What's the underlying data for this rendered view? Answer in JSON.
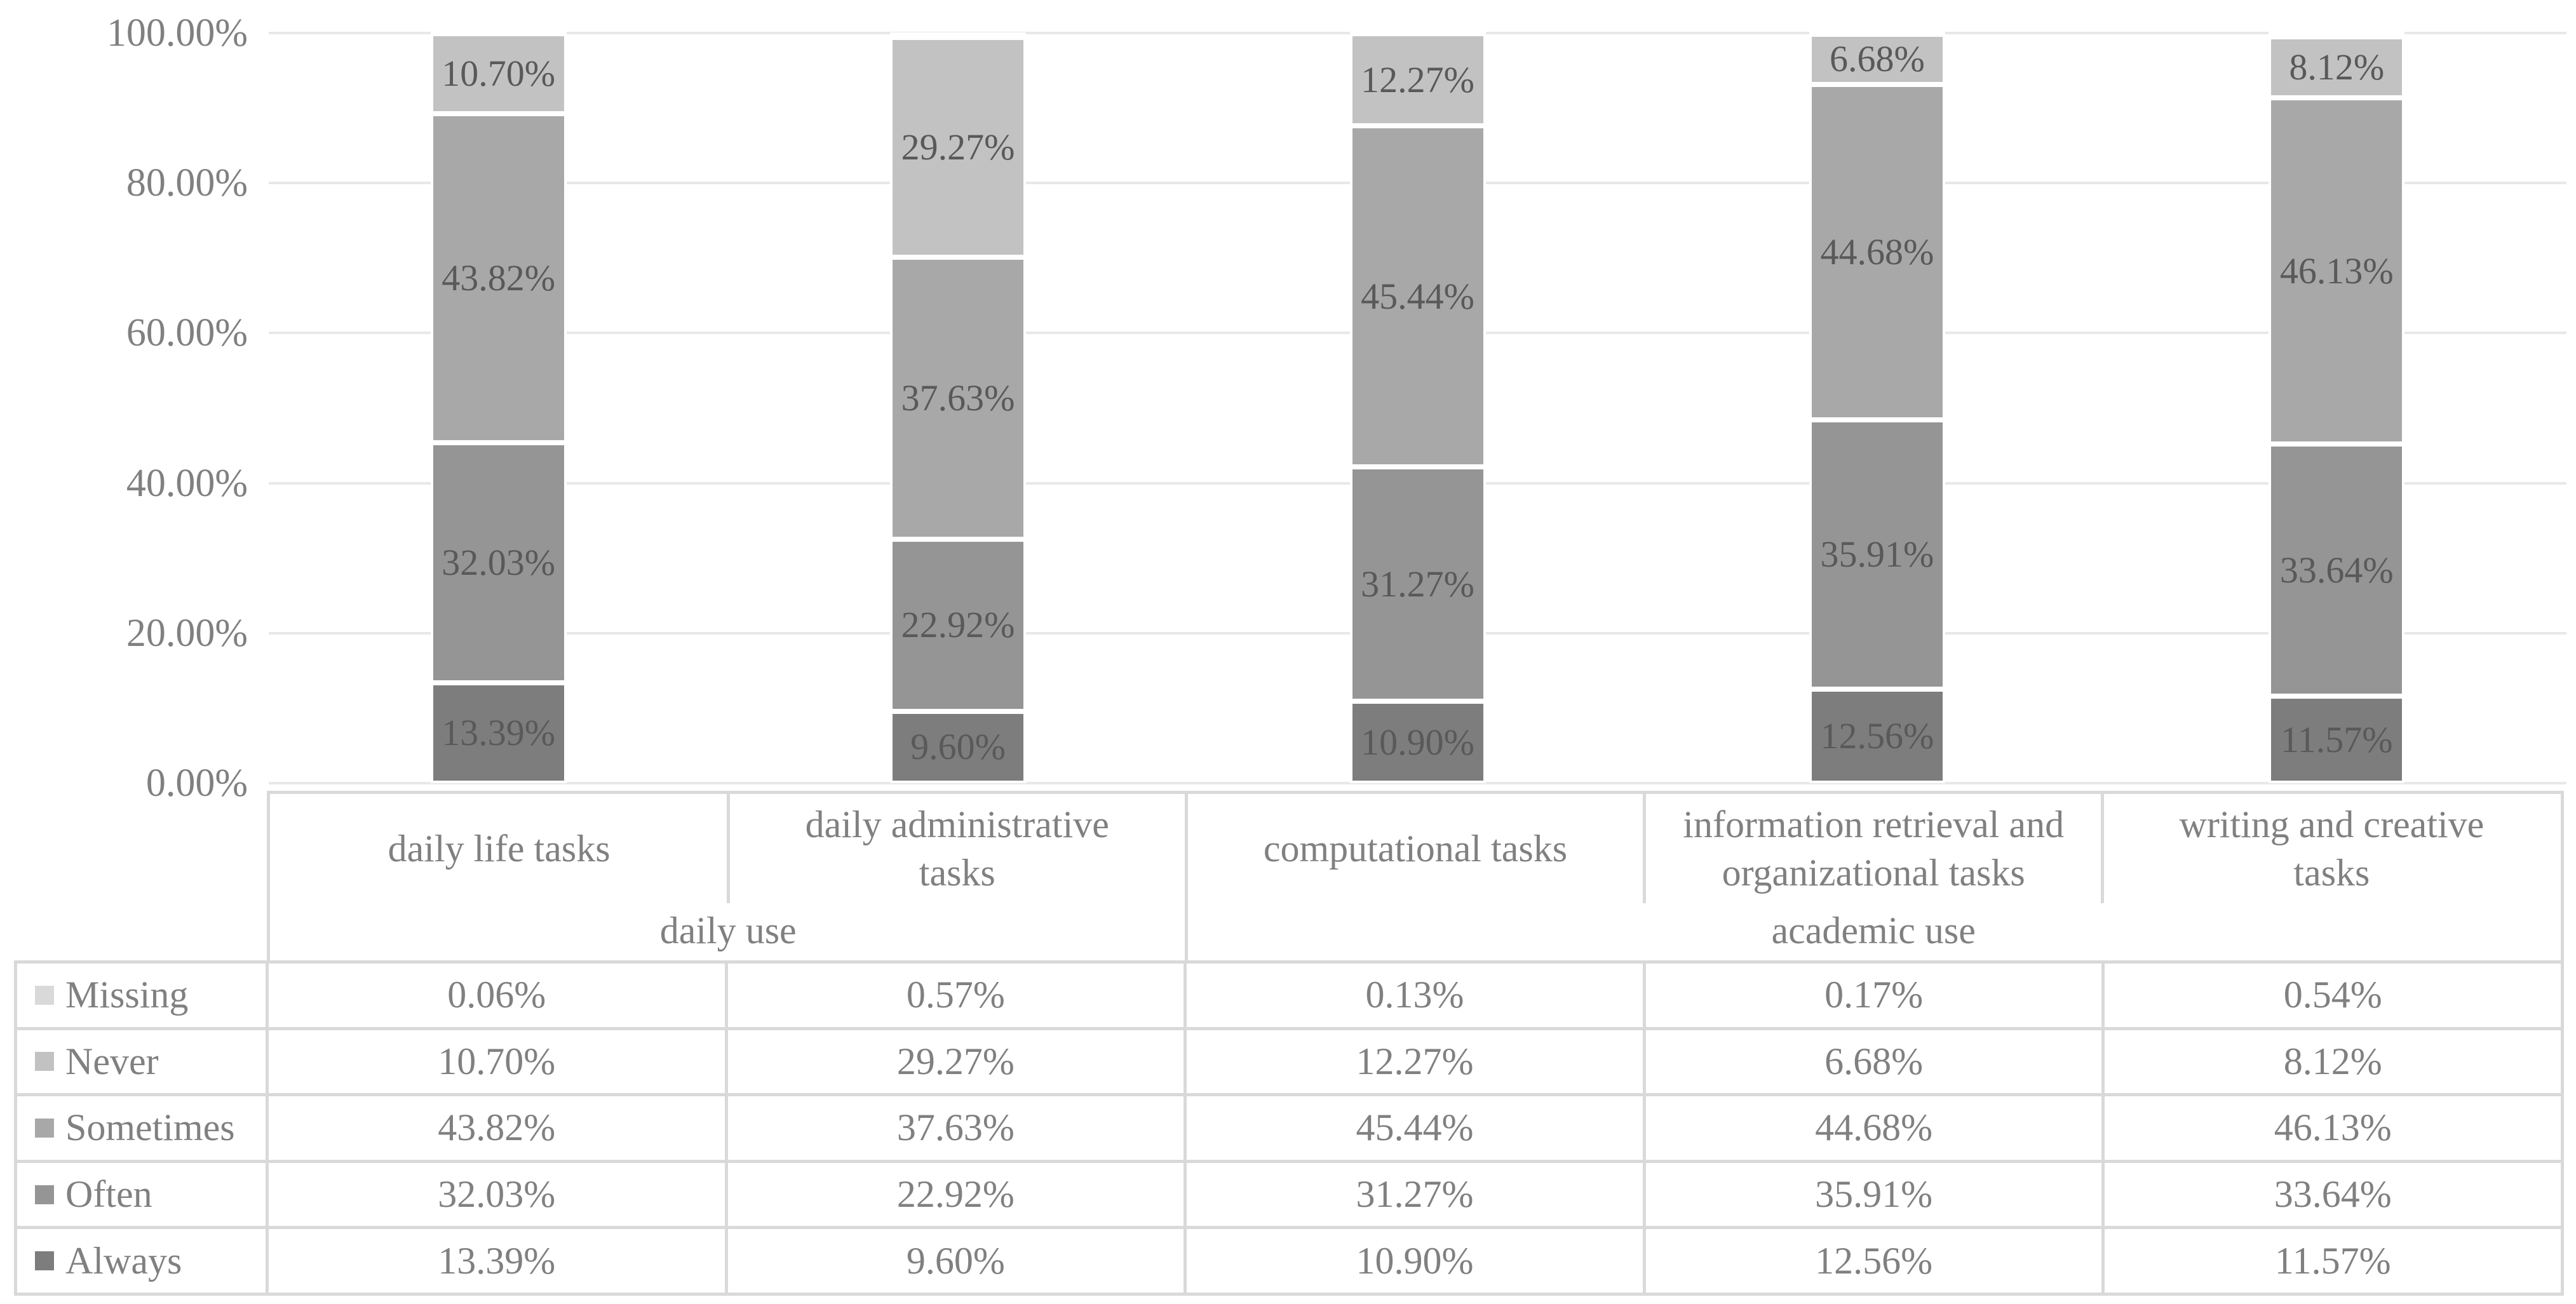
{
  "page": {
    "background": "#ffffff"
  },
  "chart_data": {
    "type": "bar",
    "subtype": "stacked-100-percent",
    "title": "",
    "xlabel": "",
    "ylabel": "",
    "ylim": [
      0,
      100
    ],
    "grid": true,
    "legend_position": "table-left",
    "categories": [
      "daily life tasks",
      "daily administrative tasks",
      "computational tasks",
      "information retrieval and organizational tasks",
      "writing and creative tasks"
    ],
    "category_groups": [
      {
        "label": "daily use",
        "span": 2
      },
      {
        "label": "academic use",
        "span": 3
      }
    ],
    "series": [
      {
        "name": "Missing",
        "color": "#d9d9d9",
        "chart_fill": "transparent",
        "show_chart_labels": false,
        "values": [
          0.06,
          0.57,
          0.13,
          0.17,
          0.54
        ],
        "labels": [
          "0.06%",
          "0.57%",
          "0.13%",
          "0.17%",
          "0.54%"
        ]
      },
      {
        "name": "Never",
        "color": "#c2c2c2",
        "values": [
          10.7,
          29.27,
          12.27,
          6.68,
          8.12
        ],
        "labels": [
          "10.70%",
          "29.27%",
          "12.27%",
          "6.68%",
          "8.12%"
        ]
      },
      {
        "name": "Sometimes",
        "color": "#a8a8a8",
        "values": [
          43.82,
          37.63,
          45.44,
          44.68,
          46.13
        ],
        "labels": [
          "43.82%",
          "37.63%",
          "45.44%",
          "44.68%",
          "46.13%"
        ]
      },
      {
        "name": "Often",
        "color": "#959595",
        "values": [
          32.03,
          22.92,
          31.27,
          35.91,
          33.64
        ],
        "labels": [
          "32.03%",
          "22.92%",
          "31.27%",
          "35.91%",
          "33.64%"
        ]
      },
      {
        "name": "Always",
        "color": "#7d7d7d",
        "values": [
          13.39,
          9.6,
          10.9,
          12.56,
          11.57
        ],
        "labels": [
          "13.39%",
          "9.60%",
          "10.90%",
          "12.56%",
          "11.57%"
        ]
      }
    ],
    "stack_order_bottom_to_top": [
      "Always",
      "Often",
      "Sometimes",
      "Never",
      "Missing"
    ],
    "y_axis": {
      "ticks": [
        {
          "label": "100.00%",
          "value": 100
        },
        {
          "label": "80.00%",
          "value": 80
        },
        {
          "label": "60.00%",
          "value": 60
        },
        {
          "label": "40.00%",
          "value": 40
        },
        {
          "label": "20.00%",
          "value": 20
        },
        {
          "label": "0.00%",
          "value": 0
        }
      ]
    },
    "colors": {
      "gridline": "#e8e8e8",
      "table_border": "#d9d9d9",
      "axis_text": "#808080",
      "table_text": "#808080",
      "bar_label_text": "#595959"
    }
  }
}
